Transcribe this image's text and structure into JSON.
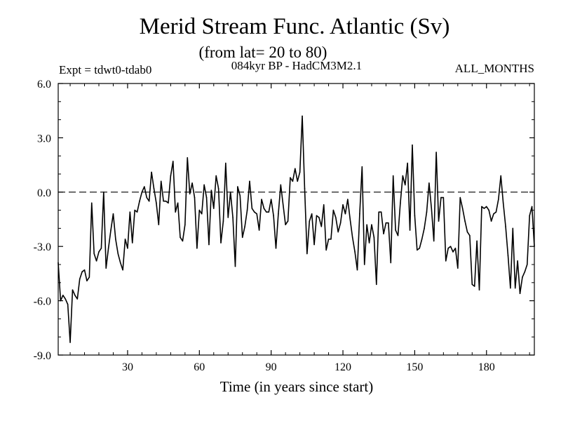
{
  "chart_data": {
    "type": "line",
    "title": "Merid Stream Func. Atlantic (Sv)",
    "subtitle": "(from lat= 20 to 80)",
    "experiment": "Expt = tdwt0-tdab0",
    "model": "084kyr BP - HadCM3M2.1",
    "months": "ALL_MONTHS",
    "xlabel": "Time (in years since start)",
    "ylabel": "",
    "xlim": [
      1,
      200
    ],
    "ylim": [
      -9,
      6
    ],
    "xticks": [
      30,
      60,
      90,
      120,
      150,
      180
    ],
    "xtick_labels": [
      "30",
      "60",
      "90",
      "120",
      "150",
      "180"
    ],
    "yticks": [
      -9,
      -6,
      -3,
      0,
      3,
      6
    ],
    "ytick_labels": [
      "-9.0",
      "-6.0",
      "-3.0",
      "0.0",
      "3.0",
      "6.0"
    ],
    "reference_line": {
      "y": 0,
      "style": "dashed"
    },
    "series": [
      {
        "name": "Merid Stream Func. Atlantic",
        "x": [
          1,
          2,
          3,
          4,
          5,
          6,
          7,
          8,
          9,
          10,
          11,
          12,
          13,
          14,
          15,
          16,
          17,
          18,
          19,
          20,
          21,
          22,
          23,
          24,
          25,
          26,
          27,
          28,
          29,
          30,
          31,
          32,
          33,
          34,
          35,
          36,
          37,
          38,
          39,
          40,
          41,
          42,
          43,
          44,
          45,
          46,
          47,
          48,
          49,
          50,
          51,
          52,
          53,
          54,
          55,
          56,
          57,
          58,
          59,
          60,
          61,
          62,
          63,
          64,
          65,
          66,
          67,
          68,
          69,
          70,
          71,
          72,
          73,
          74,
          75,
          76,
          77,
          78,
          79,
          80,
          81,
          82,
          83,
          84,
          85,
          86,
          87,
          88,
          89,
          90,
          91,
          92,
          93,
          94,
          95,
          96,
          97,
          98,
          99,
          100,
          101,
          102,
          103,
          104,
          105,
          106,
          107,
          108,
          109,
          110,
          111,
          112,
          113,
          114,
          115,
          116,
          117,
          118,
          119,
          120,
          121,
          122,
          123,
          124,
          125,
          126,
          127,
          128,
          129,
          130,
          131,
          132,
          133,
          134,
          135,
          136,
          137,
          138,
          139,
          140,
          141,
          142,
          143,
          144,
          145,
          146,
          147,
          148,
          149,
          150,
          151,
          152,
          153,
          154,
          155,
          156,
          157,
          158,
          159,
          160,
          161,
          162,
          163,
          164,
          165,
          166,
          167,
          168,
          169,
          170,
          171,
          172,
          173,
          174,
          175,
          176,
          177,
          178,
          179,
          180,
          181,
          182,
          183,
          184,
          185,
          186,
          187,
          188,
          189,
          190,
          191,
          192,
          193,
          194,
          195,
          196,
          197,
          198,
          199,
          200
        ],
        "values": [
          -3.9,
          -6.0,
          -5.7,
          -5.9,
          -6.2,
          -8.3,
          -5.4,
          -5.7,
          -5.9,
          -4.8,
          -4.4,
          -4.3,
          -4.9,
          -4.7,
          -0.6,
          -3.4,
          -3.8,
          -3.3,
          -3.1,
          0.0,
          -4.2,
          -3.1,
          -2.1,
          -1.2,
          -2.6,
          -3.4,
          -3.9,
          -4.3,
          -2.6,
          -3.1,
          -1.1,
          -2.8,
          -1.0,
          -1.1,
          -0.5,
          0.0,
          0.3,
          -0.3,
          -0.5,
          1.1,
          0.2,
          -0.6,
          -1.8,
          0.6,
          -0.5,
          -0.5,
          -0.6,
          0.9,
          1.7,
          -1.1,
          -0.6,
          -2.5,
          -2.7,
          -1.8,
          1.9,
          -0.1,
          0.5,
          -0.3,
          -3.1,
          -1.0,
          -1.2,
          0.4,
          -0.3,
          -2.9,
          0.1,
          -0.9,
          0.9,
          0.2,
          -2.8,
          -1.6,
          1.6,
          -1.4,
          0.0,
          -1.4,
          -4.1,
          0.3,
          -0.2,
          -2.5,
          -1.9,
          -1.0,
          0.6,
          -0.9,
          -1.1,
          -1.2,
          -2.1,
          -0.4,
          -0.9,
          -1.1,
          -1.1,
          -0.4,
          -1.3,
          -3.1,
          -1.2,
          0.4,
          -0.7,
          -1.8,
          -1.6,
          0.8,
          0.6,
          1.3,
          0.6,
          1.1,
          4.2,
          0.2,
          -3.4,
          -1.6,
          -1.2,
          -2.9,
          -1.3,
          -1.4,
          -1.9,
          -0.7,
          -3.2,
          -2.6,
          -2.6,
          -1.0,
          -1.4,
          -2.2,
          -1.7,
          -0.7,
          -1.2,
          -0.4,
          -1.5,
          -2.5,
          -3.3,
          -4.3,
          -1.2,
          1.4,
          -4.0,
          -1.8,
          -2.8,
          -1.8,
          -2.5,
          -5.1,
          -1.1,
          -1.1,
          -2.3,
          -1.7,
          -1.7,
          -3.9,
          0.9,
          -2.1,
          -2.4,
          -0.6,
          0.9,
          0.4,
          1.6,
          -2.1,
          2.6,
          -1.3,
          -3.2,
          -3.1,
          -2.6,
          -2.0,
          -1.1,
          0.5,
          -0.9,
          -2.7,
          2.2,
          -1.6,
          -0.3,
          -0.3,
          -3.8,
          -3.1,
          -3.0,
          -3.3,
          -3.1,
          -4.2,
          -0.3,
          -0.9,
          -1.6,
          -2.2,
          -2.4,
          -5.1,
          -5.2,
          -2.7,
          -5.4,
          -0.8,
          -0.9,
          -0.8,
          -1.0,
          -1.6,
          -1.2,
          -1.1,
          -0.4,
          0.9,
          -0.6,
          -1.9,
          -3.5,
          -5.3,
          -2.0,
          -5.3,
          -3.8,
          -5.6,
          -4.7,
          -4.4,
          -4.0,
          -1.3,
          -0.8,
          -3.0
        ]
      }
    ]
  }
}
